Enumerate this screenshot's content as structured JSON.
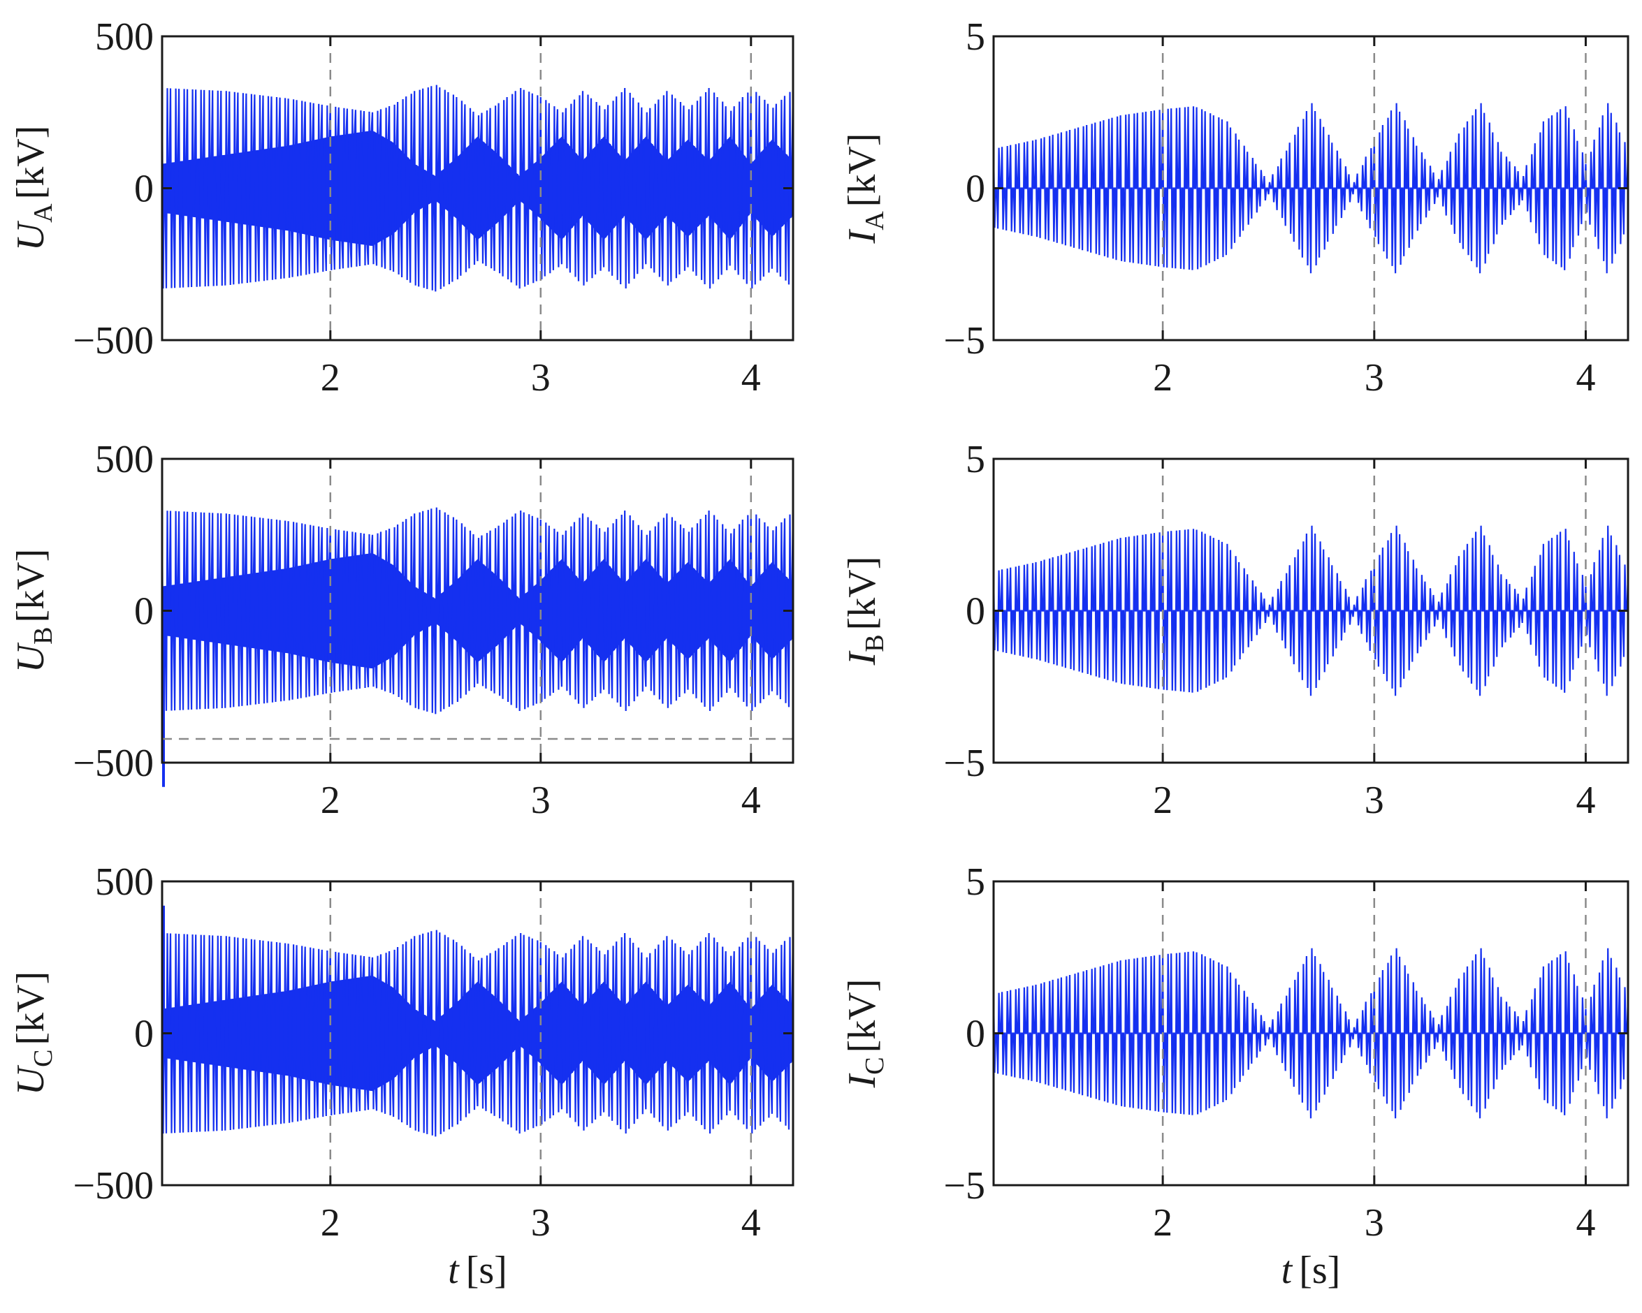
{
  "chart_data": [
    {
      "type": "line",
      "id": "ua",
      "ylabel": {
        "symbol": "U",
        "subscript": "A",
        "unit": "[kV]"
      },
      "xlim": [
        1.2,
        4.2
      ],
      "ylim": [
        -500,
        500
      ],
      "xticks": [
        2,
        3,
        4
      ],
      "xtick_labels": [
        "2",
        "3",
        "4"
      ],
      "yticks": [
        -500,
        0,
        500
      ],
      "ytick_labels": [
        "−500",
        "0",
        "500"
      ],
      "grid": "dashed",
      "hline": null,
      "xlabel": null,
      "series": [
        {
          "color": "#1530f0",
          "envelope": {
            "t": [
              1.2,
              1.5,
              1.8,
              2.0,
              2.2,
              2.3,
              2.4,
              2.5,
              2.6,
              2.7,
              2.8,
              2.9,
              3.0,
              3.1,
              3.2,
              3.3,
              3.4,
              3.5,
              3.6,
              3.7,
              3.8,
              3.9,
              4.0,
              4.1,
              4.2
            ],
            "max": [
              330,
              320,
              295,
              270,
              250,
              275,
              320,
              340,
              300,
              240,
              280,
              330,
              300,
              250,
              320,
              260,
              330,
              250,
              320,
              260,
              330,
              255,
              330,
              265,
              330
            ],
            "min": [
              80,
              110,
              140,
              170,
              190,
              150,
              80,
              40,
              100,
              170,
              110,
              40,
              100,
              170,
              90,
              170,
              90,
              170,
              90,
              160,
              90,
              170,
              80,
              160,
              90
            ]
          }
        }
      ]
    },
    {
      "type": "line",
      "id": "ub",
      "ylabel": {
        "symbol": "U",
        "subscript": "B",
        "unit": "[kV]"
      },
      "xlim": [
        1.2,
        4.2
      ],
      "ylim": [
        -500,
        500
      ],
      "xticks": [
        2,
        3,
        4
      ],
      "xtick_labels": [
        "2",
        "3",
        "4"
      ],
      "yticks": [
        -500,
        0,
        500
      ],
      "ytick_labels": [
        "−500",
        "0",
        "500"
      ],
      "grid": "dashed",
      "hline": -500,
      "xlabel": null,
      "series": [
        {
          "color": "#1530f0",
          "envelope": {
            "t": [
              1.2,
              1.5,
              1.8,
              2.0,
              2.2,
              2.3,
              2.4,
              2.5,
              2.6,
              2.7,
              2.8,
              2.9,
              3.0,
              3.1,
              3.2,
              3.3,
              3.4,
              3.5,
              3.6,
              3.7,
              3.8,
              3.9,
              4.0,
              4.1,
              4.2
            ],
            "max": [
              330,
              320,
              295,
              270,
              250,
              275,
              320,
              340,
              300,
              240,
              280,
              330,
              300,
              250,
              320,
              260,
              330,
              250,
              320,
              260,
              330,
              255,
              330,
              265,
              330
            ],
            "min": [
              80,
              110,
              140,
              170,
              190,
              150,
              80,
              40,
              100,
              170,
              110,
              40,
              100,
              170,
              90,
              170,
              90,
              170,
              90,
              160,
              90,
              170,
              80,
              160,
              90
            ]
          },
          "start_spike": -580
        }
      ]
    },
    {
      "type": "line",
      "id": "uc",
      "ylabel": {
        "symbol": "U",
        "subscript": "C",
        "unit": "[kV]"
      },
      "xlim": [
        1.2,
        4.2
      ],
      "ylim": [
        -500,
        500
      ],
      "xticks": [
        2,
        3,
        4
      ],
      "xtick_labels": [
        "2",
        "3",
        "4"
      ],
      "yticks": [
        -500,
        0,
        500
      ],
      "ytick_labels": [
        "−500",
        "0",
        "500"
      ],
      "grid": "dashed",
      "hline": null,
      "xlabel": {
        "symbol": "t",
        "unit": "[s]"
      },
      "series": [
        {
          "color": "#1530f0",
          "envelope": {
            "t": [
              1.2,
              1.5,
              1.8,
              2.0,
              2.2,
              2.3,
              2.4,
              2.5,
              2.6,
              2.7,
              2.8,
              2.9,
              3.0,
              3.1,
              3.2,
              3.3,
              3.4,
              3.5,
              3.6,
              3.7,
              3.8,
              3.9,
              4.0,
              4.1,
              4.2
            ],
            "max": [
              330,
              320,
              295,
              270,
              250,
              275,
              320,
              340,
              300,
              240,
              280,
              330,
              300,
              250,
              320,
              260,
              330,
              250,
              320,
              260,
              330,
              255,
              330,
              265,
              330
            ],
            "min": [
              80,
              110,
              140,
              170,
              190,
              150,
              80,
              40,
              100,
              170,
              110,
              40,
              100,
              170,
              90,
              170,
              90,
              170,
              90,
              160,
              90,
              170,
              80,
              160,
              90
            ]
          },
          "start_spike": 420
        }
      ]
    },
    {
      "type": "line",
      "id": "ia",
      "ylabel": {
        "symbol": "I",
        "subscript": "A",
        "unit": "[kV]"
      },
      "xlim": [
        1.2,
        4.2
      ],
      "ylim": [
        -5,
        5
      ],
      "xticks": [
        2,
        3,
        4
      ],
      "xtick_labels": [
        "2",
        "3",
        "4"
      ],
      "yticks": [
        -5,
        0,
        5
      ],
      "ytick_labels": [
        "−5",
        "0",
        "5"
      ],
      "grid": "dashed",
      "hline": null,
      "xlabel": null,
      "series": [
        {
          "color": "#1530f0",
          "envelope": {
            "t": [
              1.2,
              1.4,
              1.6,
              1.8,
              2.0,
              2.15,
              2.3,
              2.4,
              2.5,
              2.6,
              2.7,
              2.8,
              2.9,
              3.0,
              3.1,
              3.2,
              3.3,
              3.4,
              3.5,
              3.6,
              3.7,
              3.8,
              3.9,
              4.0,
              4.1,
              4.2
            ],
            "max": [
              1.3,
              1.6,
              2.0,
              2.4,
              2.6,
              2.7,
              2.2,
              1.2,
              0.2,
              1.5,
              2.8,
              1.5,
              0.2,
              1.6,
              2.8,
              1.4,
              0.3,
              1.8,
              2.8,
              1.2,
              0.4,
              2.2,
              2.7,
              0.8,
              2.8,
              1.2
            ]
          }
        }
      ]
    },
    {
      "type": "line",
      "id": "ib",
      "ylabel": {
        "symbol": "I",
        "subscript": "B",
        "unit": "[kV]"
      },
      "xlim": [
        1.2,
        4.2
      ],
      "ylim": [
        -5,
        5
      ],
      "xticks": [
        2,
        3,
        4
      ],
      "xtick_labels": [
        "2",
        "3",
        "4"
      ],
      "yticks": [
        -5,
        0,
        5
      ],
      "ytick_labels": [
        "−5",
        "0",
        "5"
      ],
      "grid": "dashed",
      "hline": null,
      "xlabel": null,
      "series": [
        {
          "color": "#1530f0",
          "envelope": {
            "t": [
              1.2,
              1.4,
              1.6,
              1.8,
              2.0,
              2.15,
              2.3,
              2.4,
              2.5,
              2.6,
              2.7,
              2.8,
              2.9,
              3.0,
              3.1,
              3.2,
              3.3,
              3.4,
              3.5,
              3.6,
              3.7,
              3.8,
              3.9,
              4.0,
              4.1,
              4.2
            ],
            "max": [
              1.3,
              1.6,
              2.0,
              2.4,
              2.6,
              2.7,
              2.2,
              1.2,
              0.2,
              1.5,
              2.8,
              1.5,
              0.2,
              1.6,
              2.8,
              1.4,
              0.3,
              1.8,
              2.8,
              1.2,
              0.4,
              2.2,
              2.7,
              0.8,
              2.8,
              1.2
            ]
          }
        }
      ]
    },
    {
      "type": "line",
      "id": "ic",
      "ylabel": {
        "symbol": "I",
        "subscript": "C",
        "unit": "[kV]"
      },
      "xlim": [
        1.2,
        4.2
      ],
      "ylim": [
        -5,
        5
      ],
      "xticks": [
        2,
        3,
        4
      ],
      "xtick_labels": [
        "2",
        "3",
        "4"
      ],
      "yticks": [
        -5,
        0,
        5
      ],
      "ytick_labels": [
        "−5",
        "0",
        "5"
      ],
      "grid": "dashed",
      "hline": null,
      "xlabel": {
        "symbol": "t",
        "unit": "[s]"
      },
      "series": [
        {
          "color": "#1530f0",
          "envelope": {
            "t": [
              1.2,
              1.4,
              1.6,
              1.8,
              2.0,
              2.15,
              2.3,
              2.4,
              2.5,
              2.6,
              2.7,
              2.8,
              2.9,
              3.0,
              3.1,
              3.2,
              3.3,
              3.4,
              3.5,
              3.6,
              3.7,
              3.8,
              3.9,
              4.0,
              4.1,
              4.2
            ],
            "max": [
              1.3,
              1.6,
              2.0,
              2.4,
              2.6,
              2.7,
              2.2,
              1.2,
              0.2,
              1.5,
              2.8,
              1.5,
              0.2,
              1.6,
              2.8,
              1.4,
              0.3,
              1.8,
              2.8,
              1.2,
              0.4,
              2.2,
              2.7,
              0.8,
              2.8,
              1.2
            ]
          }
        }
      ]
    }
  ]
}
